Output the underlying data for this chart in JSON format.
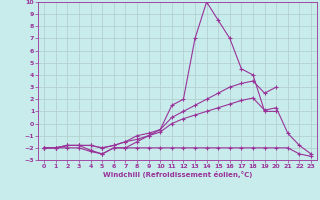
{
  "xlabel": "Windchill (Refroidissement éolien,°C)",
  "xlim": [
    -0.5,
    23.5
  ],
  "ylim": [
    -3,
    10
  ],
  "xticks": [
    0,
    1,
    2,
    3,
    4,
    5,
    6,
    7,
    8,
    9,
    10,
    11,
    12,
    13,
    14,
    15,
    16,
    17,
    18,
    19,
    20,
    21,
    22,
    23
  ],
  "yticks": [
    -3,
    -2,
    -1,
    0,
    1,
    2,
    3,
    4,
    5,
    6,
    7,
    8,
    9,
    10
  ],
  "bg_color": "#c8ecec",
  "grid_color": "#b0cccc",
  "line_color": "#993399",
  "line1_x": [
    0,
    1,
    2,
    3,
    4,
    5,
    6,
    7,
    8,
    9,
    10,
    11,
    12,
    13,
    14,
    15,
    16,
    17,
    18,
    19,
    20
  ],
  "line1_y": [
    -2,
    -2,
    -2,
    -2,
    -2.3,
    -2.5,
    -2,
    -2,
    -1.5,
    -1,
    -0.5,
    1.5,
    2,
    7,
    10,
    8.5,
    7,
    4.5,
    4,
    1,
    1
  ],
  "line2_x": [
    0,
    1,
    2,
    3,
    4,
    5,
    6,
    7,
    8,
    9,
    10,
    11,
    12,
    13,
    14,
    15,
    16,
    17,
    18,
    19,
    20
  ],
  "line2_y": [
    -2,
    -2,
    -1.8,
    -1.8,
    -1.8,
    -2,
    -1.8,
    -1.5,
    -1,
    -0.8,
    -0.5,
    0.5,
    1,
    1.5,
    2,
    2.5,
    3,
    3.3,
    3.5,
    2.5,
    3
  ],
  "line3_x": [
    0,
    1,
    2,
    3,
    4,
    5,
    6,
    7,
    8,
    9,
    10,
    11,
    12,
    13,
    14,
    15,
    16,
    17,
    18,
    19,
    20,
    21,
    22,
    23
  ],
  "line3_y": [
    -2,
    -2,
    -1.8,
    -1.8,
    -1.8,
    -2,
    -1.8,
    -1.5,
    -1.3,
    -1,
    -0.7,
    0,
    0.4,
    0.7,
    1.0,
    1.3,
    1.6,
    1.9,
    2.1,
    1.1,
    1.3,
    -0.8,
    -1.8,
    -2.5
  ],
  "line4_x": [
    0,
    1,
    2,
    3,
    4,
    5,
    6,
    7,
    8,
    9,
    10,
    11,
    12,
    13,
    14,
    15,
    16,
    17,
    18,
    19,
    20,
    21,
    22,
    23
  ],
  "line4_y": [
    -2,
    -2,
    -1.8,
    -1.8,
    -2.2,
    -2.5,
    -2,
    -2,
    -2,
    -2,
    -2,
    -2,
    -2,
    -2,
    -2,
    -2,
    -2,
    -2,
    -2,
    -2,
    -2,
    -2,
    -2.5,
    -2.7
  ]
}
